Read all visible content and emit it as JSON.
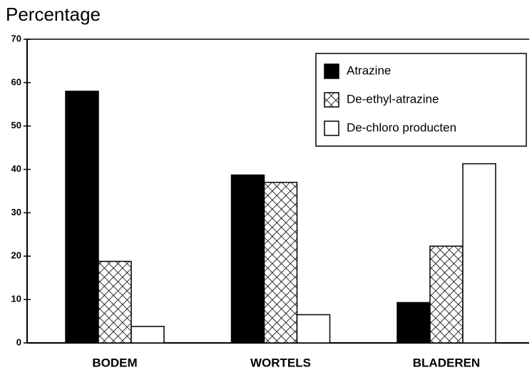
{
  "chart_data": {
    "type": "bar",
    "title": "Percentage",
    "categories": [
      "BODEM",
      "WORTELS",
      "BLADEREN"
    ],
    "series": [
      {
        "name": "Atrazine",
        "color": "#000000",
        "values": [
          58,
          38.7,
          9.3
        ]
      },
      {
        "name": "De-ethyl-atrazine",
        "color": "#000000",
        "pattern": "crosshatch",
        "values": [
          18.8,
          37,
          22.3
        ]
      },
      {
        "name": "De-chloro producten",
        "color": "#ffffff",
        "values": [
          3.8,
          6.5,
          41.3
        ]
      }
    ],
    "ylim": [
      0,
      70
    ],
    "yticks": [
      0,
      10,
      20,
      30,
      40,
      50,
      60,
      70
    ],
    "grid": false,
    "legend": "upper right"
  }
}
